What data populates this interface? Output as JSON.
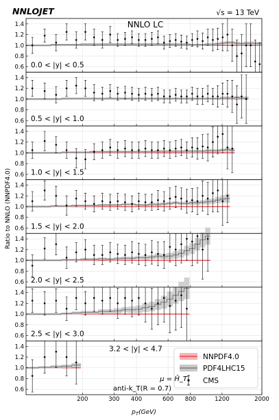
{
  "header": {
    "logo": "NNLOJET",
    "energy": "√s = 13 TeV",
    "order": "NNLO LC"
  },
  "axes": {
    "ylabel": "Ratio to NNLO (NNPDF4.0)",
    "xlabel": "p_T(GeV)",
    "xlabel_main": "p",
    "xlabel_sub": "T",
    "xlabel_unit": "(GeV)",
    "xticks": [
      {
        "value": 200,
        "label": "200"
      },
      {
        "value": 300,
        "label": "300"
      },
      {
        "value": 400,
        "label": "400"
      },
      {
        "value": 600,
        "label": "600"
      },
      {
        "value": 800,
        "label": "800"
      },
      {
        "value": 1200,
        "label": "1200"
      },
      {
        "value": 2000,
        "label": "2000"
      }
    ],
    "yticks": [
      0.6,
      0.8,
      1.0,
      1.2,
      1.4
    ],
    "ytick_labels": [
      "0.6",
      "0.8",
      "1.0",
      "1.2",
      "1.4"
    ]
  },
  "legend": {
    "items": [
      {
        "label": "NNPDF4.0",
        "type": "band",
        "color": "#e8323c"
      },
      {
        "label": "PDF4LHC15",
        "type": "band",
        "color": "#777777"
      },
      {
        "label": "CMS",
        "type": "errorbar",
        "color": "#000000"
      }
    ]
  },
  "annotations": {
    "scale": "μ = Ĥ_T",
    "algorithm": "anti-k_T(R = 0.7)"
  },
  "colors": {
    "nnpdf": "#e8323c",
    "nnpdf_band": "#f7b3b7",
    "pdf4lhc": "#6e6e6e",
    "pdf4lhc_band": "#c8c8c8",
    "cms": "#000000",
    "grid": "#dddddd"
  },
  "chart_data": {
    "type": "line",
    "xscale": "log",
    "xlim": [
      97,
      2000
    ],
    "ylim": [
      0.5,
      1.5
    ],
    "bin_edges": [
      97,
      114,
      133,
      153,
      174,
      196,
      220,
      245,
      272,
      300,
      330,
      362,
      395,
      430,
      468,
      507,
      548,
      592,
      638,
      686,
      737,
      790,
      846,
      905,
      967,
      1032,
      1101,
      1172,
      1248,
      1327,
      1410,
      1497,
      1588,
      1684,
      1784,
      1890,
      2000
    ],
    "panels": [
      {
        "label": "0.0 < |y| < 0.5",
        "nnpdf_nbins": 36,
        "pdf4lhc": [
          1.0,
          1.0,
          1.01,
          1.01,
          1.01,
          1.02,
          1.02,
          1.02,
          1.02,
          1.02,
          1.02,
          1.02,
          1.02,
          1.02,
          1.02,
          1.02,
          1.02,
          1.02,
          1.02,
          1.02,
          1.02,
          1.01,
          1.01,
          1.01,
          1.02,
          1.02,
          1.03,
          1.04,
          1.05,
          1.05,
          1.04,
          1.03,
          1.04,
          1.04,
          1.04,
          1.03
        ],
        "pdf4lhc_err": [
          0.02,
          0.02,
          0.02,
          0.02,
          0.02,
          0.02,
          0.02,
          0.02,
          0.02,
          0.02,
          0.02,
          0.02,
          0.02,
          0.02,
          0.02,
          0.02,
          0.02,
          0.02,
          0.02,
          0.02,
          0.02,
          0.02,
          0.02,
          0.02,
          0.02,
          0.02,
          0.02,
          0.03,
          0.03,
          0.03,
          0.03,
          0.03,
          0.03,
          0.03,
          0.03,
          0.03
        ],
        "cms": [
          1.0,
          1.18,
          1.05,
          1.25,
          1.1,
          1.25,
          1.15,
          1.1,
          1.2,
          1.1,
          1.12,
          1.15,
          1.1,
          1.1,
          1.12,
          1.15,
          1.05,
          1.08,
          1.1,
          1.07,
          1.05,
          1.1,
          1.12,
          1.08,
          1.15,
          1.1,
          1.12,
          1.15,
          1.2,
          1.0,
          0.8,
          0.85,
          1.0,
          1.0,
          0.7,
          0.65
        ],
        "cms_err": [
          0.15,
          0.12,
          0.15,
          0.15,
          0.15,
          0.15,
          0.15,
          0.15,
          0.15,
          0.12,
          0.12,
          0.12,
          0.12,
          0.12,
          0.12,
          0.12,
          0.12,
          0.12,
          0.12,
          0.12,
          0.12,
          0.12,
          0.15,
          0.15,
          0.15,
          0.2,
          0.2,
          0.25,
          0.3,
          0.3,
          0.3,
          0.35,
          0.4,
          0.4,
          0.4,
          0.4
        ]
      },
      {
        "label": "0.5 < |y| < 1.0",
        "nnpdf_nbins": 33,
        "pdf4lhc": [
          1.0,
          1.0,
          1.0,
          1.01,
          1.01,
          1.01,
          1.01,
          1.01,
          1.01,
          1.01,
          1.01,
          1.01,
          1.01,
          1.01,
          1.01,
          1.01,
          1.01,
          1.01,
          1.01,
          1.01,
          1.01,
          1.01,
          1.01,
          1.01,
          1.01,
          1.01,
          1.01,
          1.02,
          1.02,
          1.02,
          1.03,
          1.02,
          1.02
        ],
        "pdf4lhc_err": [
          0.02,
          0.02,
          0.02,
          0.02,
          0.02,
          0.02,
          0.02,
          0.02,
          0.02,
          0.02,
          0.02,
          0.02,
          0.02,
          0.02,
          0.02,
          0.02,
          0.02,
          0.02,
          0.02,
          0.02,
          0.02,
          0.02,
          0.02,
          0.02,
          0.02,
          0.02,
          0.02,
          0.03,
          0.03,
          0.03,
          0.03,
          0.03,
          0.03
        ],
        "cms": [
          1.2,
          1.15,
          1.08,
          1.2,
          1.25,
          1.2,
          1.12,
          1.1,
          1.15,
          1.1,
          1.12,
          1.1,
          1.08,
          1.1,
          1.08,
          1.1,
          1.05,
          1.05,
          1.08,
          1.05,
          1.05,
          1.1,
          1.05,
          1.05,
          1.1,
          1.05,
          1.05,
          1.1,
          1.1,
          1.05,
          0.9,
          1.05,
          1.0
        ],
        "cms_err": [
          0.15,
          0.15,
          0.15,
          0.15,
          0.15,
          0.15,
          0.15,
          0.12,
          0.12,
          0.12,
          0.12,
          0.12,
          0.12,
          0.12,
          0.12,
          0.12,
          0.12,
          0.12,
          0.12,
          0.12,
          0.12,
          0.12,
          0.15,
          0.15,
          0.15,
          0.15,
          0.2,
          0.2,
          0.25,
          0.3,
          0.35,
          0.4,
          0.45
        ]
      },
      {
        "label": "1.0 < |y| < 1.5",
        "nnpdf_nbins": 30,
        "pdf4lhc": [
          1.0,
          1.0,
          1.0,
          1.01,
          1.01,
          1.01,
          1.02,
          1.02,
          1.02,
          1.02,
          1.02,
          1.02,
          1.02,
          1.02,
          1.02,
          1.03,
          1.03,
          1.03,
          1.03,
          1.03,
          1.03,
          1.03,
          1.03,
          1.03,
          1.04,
          1.04,
          1.04,
          1.05,
          1.06,
          1.05
        ],
        "pdf4lhc_err": [
          0.02,
          0.02,
          0.02,
          0.02,
          0.02,
          0.02,
          0.02,
          0.02,
          0.02,
          0.02,
          0.02,
          0.02,
          0.02,
          0.02,
          0.02,
          0.02,
          0.02,
          0.02,
          0.02,
          0.02,
          0.03,
          0.03,
          0.03,
          0.03,
          0.03,
          0.03,
          0.03,
          0.03,
          0.04,
          0.04
        ],
        "cms": [
          1.05,
          1.22,
          1.15,
          1.05,
          0.9,
          0.88,
          1.02,
          1.05,
          1.1,
          1.05,
          1.08,
          1.05,
          1.05,
          1.08,
          1.05,
          1.05,
          1.08,
          1.05,
          1.08,
          1.1,
          1.05,
          1.1,
          1.08,
          1.12,
          1.1,
          1.2,
          1.3,
          1.35,
          1.1,
          1.08
        ],
        "cms_err": [
          0.15,
          0.18,
          0.15,
          0.15,
          0.18,
          0.18,
          0.15,
          0.15,
          0.15,
          0.15,
          0.15,
          0.15,
          0.15,
          0.15,
          0.15,
          0.15,
          0.15,
          0.15,
          0.15,
          0.15,
          0.15,
          0.18,
          0.2,
          0.22,
          0.25,
          0.28,
          0.32,
          0.35,
          0.4,
          0.45
        ]
      },
      {
        "label": "1.5 < |y| < 2.0",
        "nnpdf_nbins": 29,
        "pdf4lhc": [
          1.0,
          1.0,
          1.01,
          1.01,
          1.02,
          1.02,
          1.02,
          1.03,
          1.03,
          1.03,
          1.04,
          1.04,
          1.03,
          1.03,
          1.04,
          1.04,
          1.05,
          1.06,
          1.07,
          1.06,
          1.06,
          1.07,
          1.07,
          1.08,
          1.09,
          1.1,
          1.12,
          1.14,
          1.15
        ],
        "pdf4lhc_err": [
          0.02,
          0.02,
          0.02,
          0.02,
          0.02,
          0.02,
          0.02,
          0.02,
          0.02,
          0.02,
          0.02,
          0.02,
          0.02,
          0.02,
          0.03,
          0.03,
          0.03,
          0.03,
          0.03,
          0.03,
          0.03,
          0.04,
          0.04,
          0.04,
          0.05,
          0.05,
          0.06,
          0.07,
          0.08
        ],
        "cms": [
          1.1,
          1.3,
          1.2,
          1.02,
          1.15,
          1.1,
          1.05,
          1.1,
          1.08,
          1.1,
          1.08,
          1.05,
          1.1,
          1.08,
          1.08,
          1.12,
          1.1,
          1.15,
          1.18,
          1.15,
          1.1,
          1.12,
          1.1,
          1.2,
          1.15,
          1.25,
          1.3,
          1.1,
          1.2
        ],
        "cms_err": [
          0.18,
          0.18,
          0.18,
          0.18,
          0.15,
          0.15,
          0.15,
          0.15,
          0.15,
          0.15,
          0.15,
          0.15,
          0.15,
          0.15,
          0.15,
          0.18,
          0.18,
          0.2,
          0.2,
          0.2,
          0.22,
          0.22,
          0.25,
          0.28,
          0.3,
          0.35,
          0.4,
          0.45,
          0.5
        ]
      },
      {
        "label": "2.0 < |y| < 2.5",
        "nnpdf_nbins": 25,
        "pdf4lhc": [
          1.0,
          1.0,
          1.0,
          1.01,
          1.01,
          1.02,
          1.02,
          1.03,
          1.02,
          1.03,
          1.04,
          1.04,
          1.05,
          1.05,
          1.06,
          1.08,
          1.07,
          1.08,
          1.1,
          1.13,
          1.18,
          1.22,
          1.3,
          1.38,
          1.45
        ],
        "pdf4lhc_err": [
          0.02,
          0.02,
          0.02,
          0.02,
          0.02,
          0.02,
          0.02,
          0.02,
          0.02,
          0.03,
          0.03,
          0.03,
          0.03,
          0.04,
          0.04,
          0.05,
          0.05,
          0.06,
          0.07,
          0.08,
          0.09,
          0.1,
          0.12,
          0.14,
          0.16
        ],
        "cms": [
          0.9,
          1.22,
          1.3,
          1.05,
          1.15,
          1.2,
          1.1,
          1.1,
          1.15,
          1.12,
          1.1,
          1.15,
          1.12,
          1.1,
          1.15,
          1.12,
          1.1,
          1.25,
          1.2,
          1.3,
          1.4,
          1.35,
          1.45,
          1.2,
          1.4
        ],
        "cms_err": [
          0.2,
          0.2,
          0.2,
          0.2,
          0.18,
          0.18,
          0.18,
          0.18,
          0.18,
          0.18,
          0.18,
          0.2,
          0.2,
          0.2,
          0.22,
          0.22,
          0.25,
          0.28,
          0.3,
          0.35,
          0.4,
          0.45,
          0.5,
          0.55,
          0.6
        ]
      },
      {
        "label": "2.5 < |y| < 3.0",
        "nnpdf_nbins": 21,
        "pdf4lhc": [
          1.0,
          1.0,
          1.0,
          1.01,
          1.02,
          1.03,
          1.03,
          1.05,
          1.05,
          1.06,
          1.08,
          1.08,
          1.09,
          1.12,
          1.14,
          1.18,
          1.22,
          1.28,
          1.35,
          1.42,
          1.48
        ],
        "pdf4lhc_err": [
          0.02,
          0.02,
          0.02,
          0.02,
          0.03,
          0.03,
          0.03,
          0.04,
          0.04,
          0.05,
          0.05,
          0.06,
          0.07,
          0.08,
          0.09,
          0.1,
          0.12,
          0.14,
          0.16,
          0.18,
          0.2
        ],
        "cms": [
          1.25,
          1.2,
          1.25,
          1.1,
          1.3,
          1.2,
          1.3,
          1.25,
          1.3,
          1.2,
          1.3,
          1.25,
          1.3,
          1.2,
          1.1,
          1.2,
          1.3,
          1.15,
          1.25,
          1.35,
          1.1
        ],
        "cms_err": [
          0.22,
          0.22,
          0.22,
          0.22,
          0.22,
          0.22,
          0.25,
          0.25,
          0.25,
          0.28,
          0.3,
          0.3,
          0.32,
          0.35,
          0.38,
          0.4,
          0.45,
          0.5,
          0.55,
          0.6,
          0.65
        ]
      },
      {
        "label": "3.2 < |y| < 4.7",
        "nnpdf_nbins": 5,
        "pdf4lhc": [
          1.0,
          1.01,
          1.02,
          1.03,
          1.05
        ],
        "pdf4lhc_err": [
          0.02,
          0.02,
          0.03,
          0.03,
          0.04
        ],
        "cms": [
          0.85,
          1.2,
          1.3,
          1.2,
          1.1
        ],
        "cms_err": [
          0.3,
          0.3,
          0.3,
          0.35,
          0.4
        ]
      }
    ]
  }
}
